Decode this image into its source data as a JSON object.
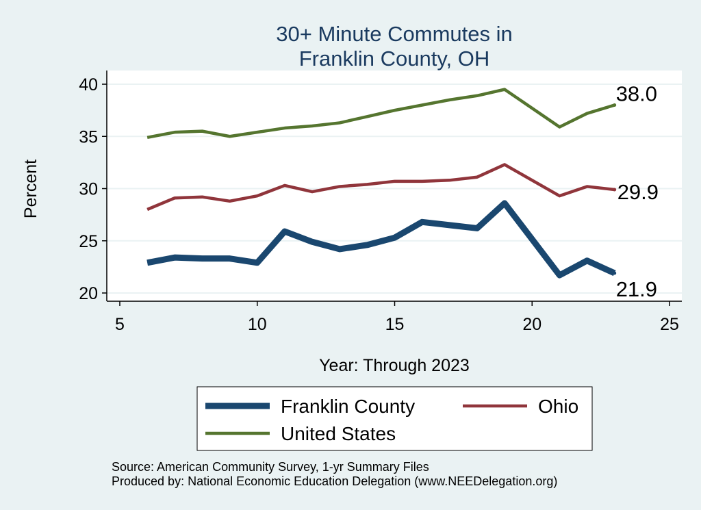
{
  "chart_data": {
    "type": "line",
    "title_lines": [
      "30+ Minute Commutes in",
      "Franklin County, OH"
    ],
    "xlabel": "Year: Through 2023",
    "ylabel": "Percent",
    "xlim": [
      5,
      25
    ],
    "ylim": [
      20,
      40
    ],
    "xticks": [
      5,
      10,
      15,
      20,
      25
    ],
    "yticks": [
      20,
      25,
      30,
      35,
      40
    ],
    "grid": true,
    "legend_position": "bottom",
    "x": [
      6,
      7,
      8,
      9,
      10,
      11,
      12,
      13,
      14,
      15,
      16,
      17,
      18,
      19,
      21,
      22,
      23
    ],
    "series": [
      {
        "name": "Franklin County",
        "color": "#1a476f",
        "values": [
          22.9,
          23.4,
          23.3,
          23.3,
          22.9,
          25.9,
          24.9,
          24.2,
          24.6,
          25.3,
          26.8,
          26.5,
          26.2,
          28.6,
          21.7,
          23.1,
          21.9
        ],
        "end_label": "21.9"
      },
      {
        "name": "Ohio",
        "color": "#90353b",
        "values": [
          28.0,
          29.1,
          29.2,
          28.8,
          29.3,
          30.3,
          29.7,
          30.2,
          30.4,
          30.7,
          30.7,
          30.8,
          31.1,
          32.3,
          29.3,
          30.2,
          29.9
        ],
        "end_label": "29.9"
      },
      {
        "name": "United States",
        "color": "#55752f",
        "values": [
          34.9,
          35.4,
          35.5,
          35.0,
          35.4,
          35.8,
          36.0,
          36.3,
          36.9,
          37.5,
          38.0,
          38.5,
          38.9,
          39.5,
          35.9,
          37.2,
          38.0
        ],
        "end_label": "38.0"
      }
    ]
  },
  "source_lines": [
    "Source: American Community Survey, 1-yr Summary Files",
    "Produced by: National Economic Education Delegation (www.NEEDelegation.org)"
  ]
}
